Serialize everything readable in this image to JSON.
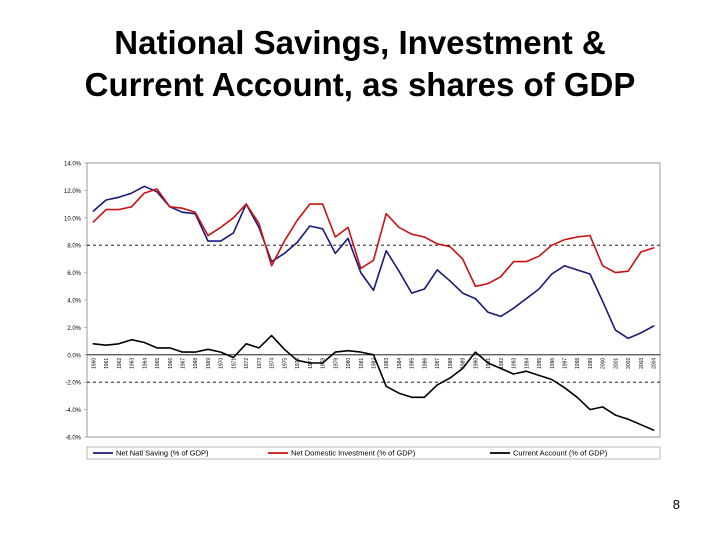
{
  "slide": {
    "title_line1": "National Savings, Investment &",
    "title_line2": "Current Account, as shares of GDP",
    "page_number": "8"
  },
  "chart_data": {
    "type": "line",
    "title": "National Savings, Investment & Current Account, as shares of GDP",
    "xlabel": "",
    "ylabel": "",
    "ylim": [
      -6.0,
      14.0
    ],
    "y_ticks": [
      14.0,
      12.0,
      10.0,
      8.0,
      6.0,
      4.0,
      2.0,
      0.0,
      -2.0,
      -4.0,
      -6.0
    ],
    "y_tick_labels": [
      "14.0%",
      "12.0%",
      "10.0%",
      "8.0%",
      "6.0%",
      "4.0%",
      "2.0%",
      "0.0%",
      "-2.0%",
      "-4.0%",
      "-6.0%"
    ],
    "reference_lines": [
      8.0,
      -2.0
    ],
    "legend_position": "bottom",
    "categories": [
      "1960",
      "1961",
      "1962",
      "1963",
      "1964",
      "1965",
      "1966",
      "1967",
      "1968",
      "1969",
      "1970",
      "1971",
      "1972",
      "1973",
      "1974",
      "1975",
      "1976",
      "1977",
      "1978",
      "1979",
      "1980",
      "1981",
      "1982",
      "1983",
      "1984",
      "1985",
      "1986",
      "1987",
      "1988",
      "1989",
      "1990",
      "1991",
      "1992",
      "1993",
      "1994",
      "1995",
      "1996",
      "1997",
      "1998",
      "1999",
      "2000",
      "2001",
      "2002",
      "2003",
      "2004"
    ],
    "tick_labels": [
      "1960",
      "1961",
      "1962",
      "1963",
      "1964",
      "1965",
      "1966",
      "1967",
      "1968",
      "1969",
      "1970",
      "1971",
      "1972",
      "1973",
      "1974",
      "1975",
      "1976",
      "1977",
      "1978",
      "1979",
      "1980",
      "1981",
      "1982",
      "1983",
      "1984",
      "1985",
      "1986",
      "1987",
      "1988",
      "1989",
      "1990",
      "1991",
      "1992",
      "1993",
      "1994",
      "1995",
      "1996",
      "1997",
      "1998",
      "1999",
      "2000",
      "2001",
      "2002",
      "2003",
      "2004"
    ],
    "series": [
      {
        "name": "Net Natl Saving (% of GDP)",
        "color": "#1a1a7a",
        "values": [
          10.5,
          11.3,
          11.5,
          11.8,
          12.3,
          11.9,
          10.8,
          10.4,
          10.3,
          8.3,
          8.3,
          8.9,
          11.0,
          9.3,
          6.8,
          7.4,
          8.2,
          9.4,
          9.2,
          7.4,
          8.5,
          6.0,
          4.7,
          7.6,
          6.1,
          4.5,
          4.8,
          6.2,
          5.4,
          4.5,
          4.1,
          3.1,
          2.8,
          3.4,
          4.1,
          4.8,
          5.9,
          6.5,
          6.2,
          5.9,
          3.9,
          1.8,
          1.2,
          1.6,
          2.1
        ]
      },
      {
        "name": "Net Domestic Investment (% of GDP)",
        "color": "#cc1111",
        "values": [
          9.7,
          10.6,
          10.6,
          10.8,
          11.8,
          12.1,
          10.8,
          10.7,
          10.4,
          8.7,
          9.3,
          10.0,
          11.0,
          9.6,
          6.5,
          8.3,
          9.8,
          11.0,
          11.0,
          8.6,
          9.3,
          6.3,
          6.9,
          10.3,
          9.3,
          8.8,
          8.6,
          8.1,
          7.9,
          7.0,
          5.0,
          5.2,
          5.7,
          6.8,
          6.8,
          7.2,
          8.0,
          8.4,
          8.6,
          8.7,
          6.5,
          6.0,
          6.1,
          7.5,
          7.8
        ]
      },
      {
        "name": "Current Account (% of GDP)",
        "color": "#000000",
        "values": [
          0.8,
          0.7,
          0.8,
          1.1,
          0.9,
          0.5,
          0.5,
          0.2,
          0.2,
          0.4,
          0.2,
          -0.2,
          0.8,
          0.5,
          1.4,
          0.4,
          -0.4,
          -0.6,
          -0.6,
          0.2,
          0.3,
          0.2,
          0.0,
          -2.3,
          -2.8,
          -3.1,
          -3.1,
          -2.2,
          -1.7,
          -1.0,
          0.2,
          -0.6,
          -1.0,
          -1.4,
          -1.2,
          -1.5,
          -1.8,
          -2.4,
          -3.1,
          -4.0,
          -3.8,
          -4.4,
          -4.7,
          -5.1,
          -5.5
        ]
      }
    ]
  }
}
